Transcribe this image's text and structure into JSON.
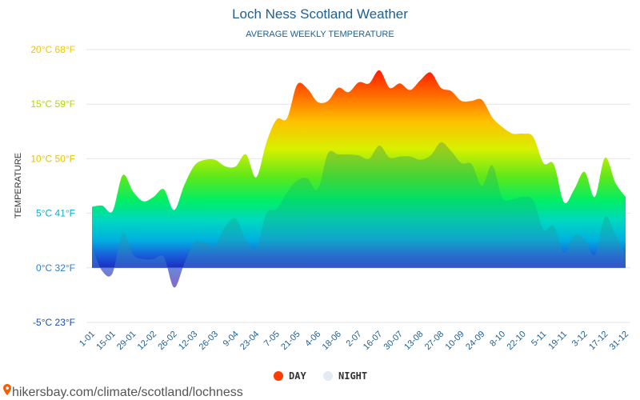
{
  "chart_data": {
    "type": "area",
    "title": "Loch Ness Scotland Weather",
    "subtitle": "AVERAGE WEEKLY TEMPERATURE",
    "ylabel": "TEMPERATURE",
    "ylim": [
      -5,
      20
    ],
    "yticks": [
      {
        "value": 20,
        "label": "20°C 68°F",
        "color": "#f5c400"
      },
      {
        "value": 15,
        "label": "15°C 59°F",
        "color": "#b8d400"
      },
      {
        "value": 10,
        "label": "10°C 50°F",
        "color": "#e6c200"
      },
      {
        "value": 5,
        "label": "5°C 41°F",
        "color": "#00b4c8"
      },
      {
        "value": 0,
        "label": "0°C 32°F",
        "color": "#2a7fd4"
      },
      {
        "value": -5,
        "label": "-5°C 23°F",
        "color": "#1a4fb0"
      }
    ],
    "grid": true,
    "legend_position": "bottom",
    "x": [
      "1-01",
      "8-01",
      "15-01",
      "22-01",
      "29-01",
      "5-02",
      "12-02",
      "19-02",
      "26-02",
      "5-03",
      "12-03",
      "19-03",
      "26-03",
      "2-04",
      "9-04",
      "16-04",
      "23-04",
      "30-04",
      "7-05",
      "14-05",
      "21-05",
      "28-05",
      "4-06",
      "11-06",
      "18-06",
      "25-06",
      "2-07",
      "9-07",
      "16-07",
      "23-07",
      "30-07",
      "6-08",
      "13-08",
      "20-08",
      "27-08",
      "3-09",
      "10-09",
      "17-09",
      "24-09",
      "1-10",
      "8-10",
      "15-10",
      "22-10",
      "29-10",
      "5-11",
      "12-11",
      "19-11",
      "26-11",
      "3-12",
      "10-12",
      "17-12",
      "24-12",
      "31-12"
    ],
    "xtick_labels": [
      "1-01",
      "15-01",
      "29-01",
      "12-02",
      "26-02",
      "12-03",
      "26-03",
      "9-04",
      "23-04",
      "7-05",
      "21-05",
      "4-06",
      "18-06",
      "2-07",
      "16-07",
      "30-07",
      "13-08",
      "27-08",
      "10-09",
      "24-09",
      "8-10",
      "22-10",
      "5-11",
      "19-11",
      "3-12",
      "17-12",
      "31-12"
    ],
    "series": [
      {
        "name": "DAY",
        "color": "#ff3b00",
        "values": [
          5.6,
          5.7,
          5.2,
          8.5,
          7.0,
          6.1,
          6.5,
          7.2,
          5.3,
          7.6,
          9.4,
          9.9,
          9.9,
          9.3,
          9.3,
          10.4,
          8.3,
          11.5,
          13.6,
          13.7,
          16.8,
          16.4,
          15.2,
          15.3,
          16.5,
          16.1,
          17.0,
          16.9,
          18.1,
          16.5,
          16.9,
          16.3,
          17.2,
          17.9,
          16.5,
          16.2,
          15.3,
          15.3,
          15.4,
          13.8,
          12.9,
          12.3,
          12.3,
          12.0,
          9.6,
          9.5,
          6.0,
          7.2,
          8.8,
          6.5,
          10.1,
          7.8,
          6.5
        ]
      },
      {
        "name": "NIGHT",
        "color": "#e4e9f2",
        "values": [
          1.9,
          -0.3,
          -0.5,
          3.2,
          1.2,
          0.8,
          0.8,
          1.0,
          -1.8,
          0.4,
          2.3,
          2.3,
          2.1,
          3.8,
          4.5,
          2.6,
          1.8,
          5.0,
          5.4,
          6.9,
          8.0,
          8.2,
          7.2,
          10.5,
          10.4,
          10.4,
          10.3,
          10.0,
          11.2,
          10.1,
          10.2,
          10.2,
          9.9,
          10.3,
          11.5,
          10.7,
          9.6,
          9.5,
          7.5,
          9.4,
          6.4,
          6.3,
          6.5,
          6.2,
          3.5,
          3.8,
          1.4,
          3.0,
          2.6,
          1.2,
          4.7,
          3.0,
          1.2
        ]
      }
    ]
  },
  "legend": {
    "day_label": "DAY",
    "night_label": "NIGHT",
    "day_color": "#ff3b00",
    "night_color": "#e4e9f2"
  },
  "source": {
    "text": "hikersbay.com/climate/scotland/lochness",
    "icon": "map-pin-icon",
    "icon_color": "#ff5a00"
  }
}
